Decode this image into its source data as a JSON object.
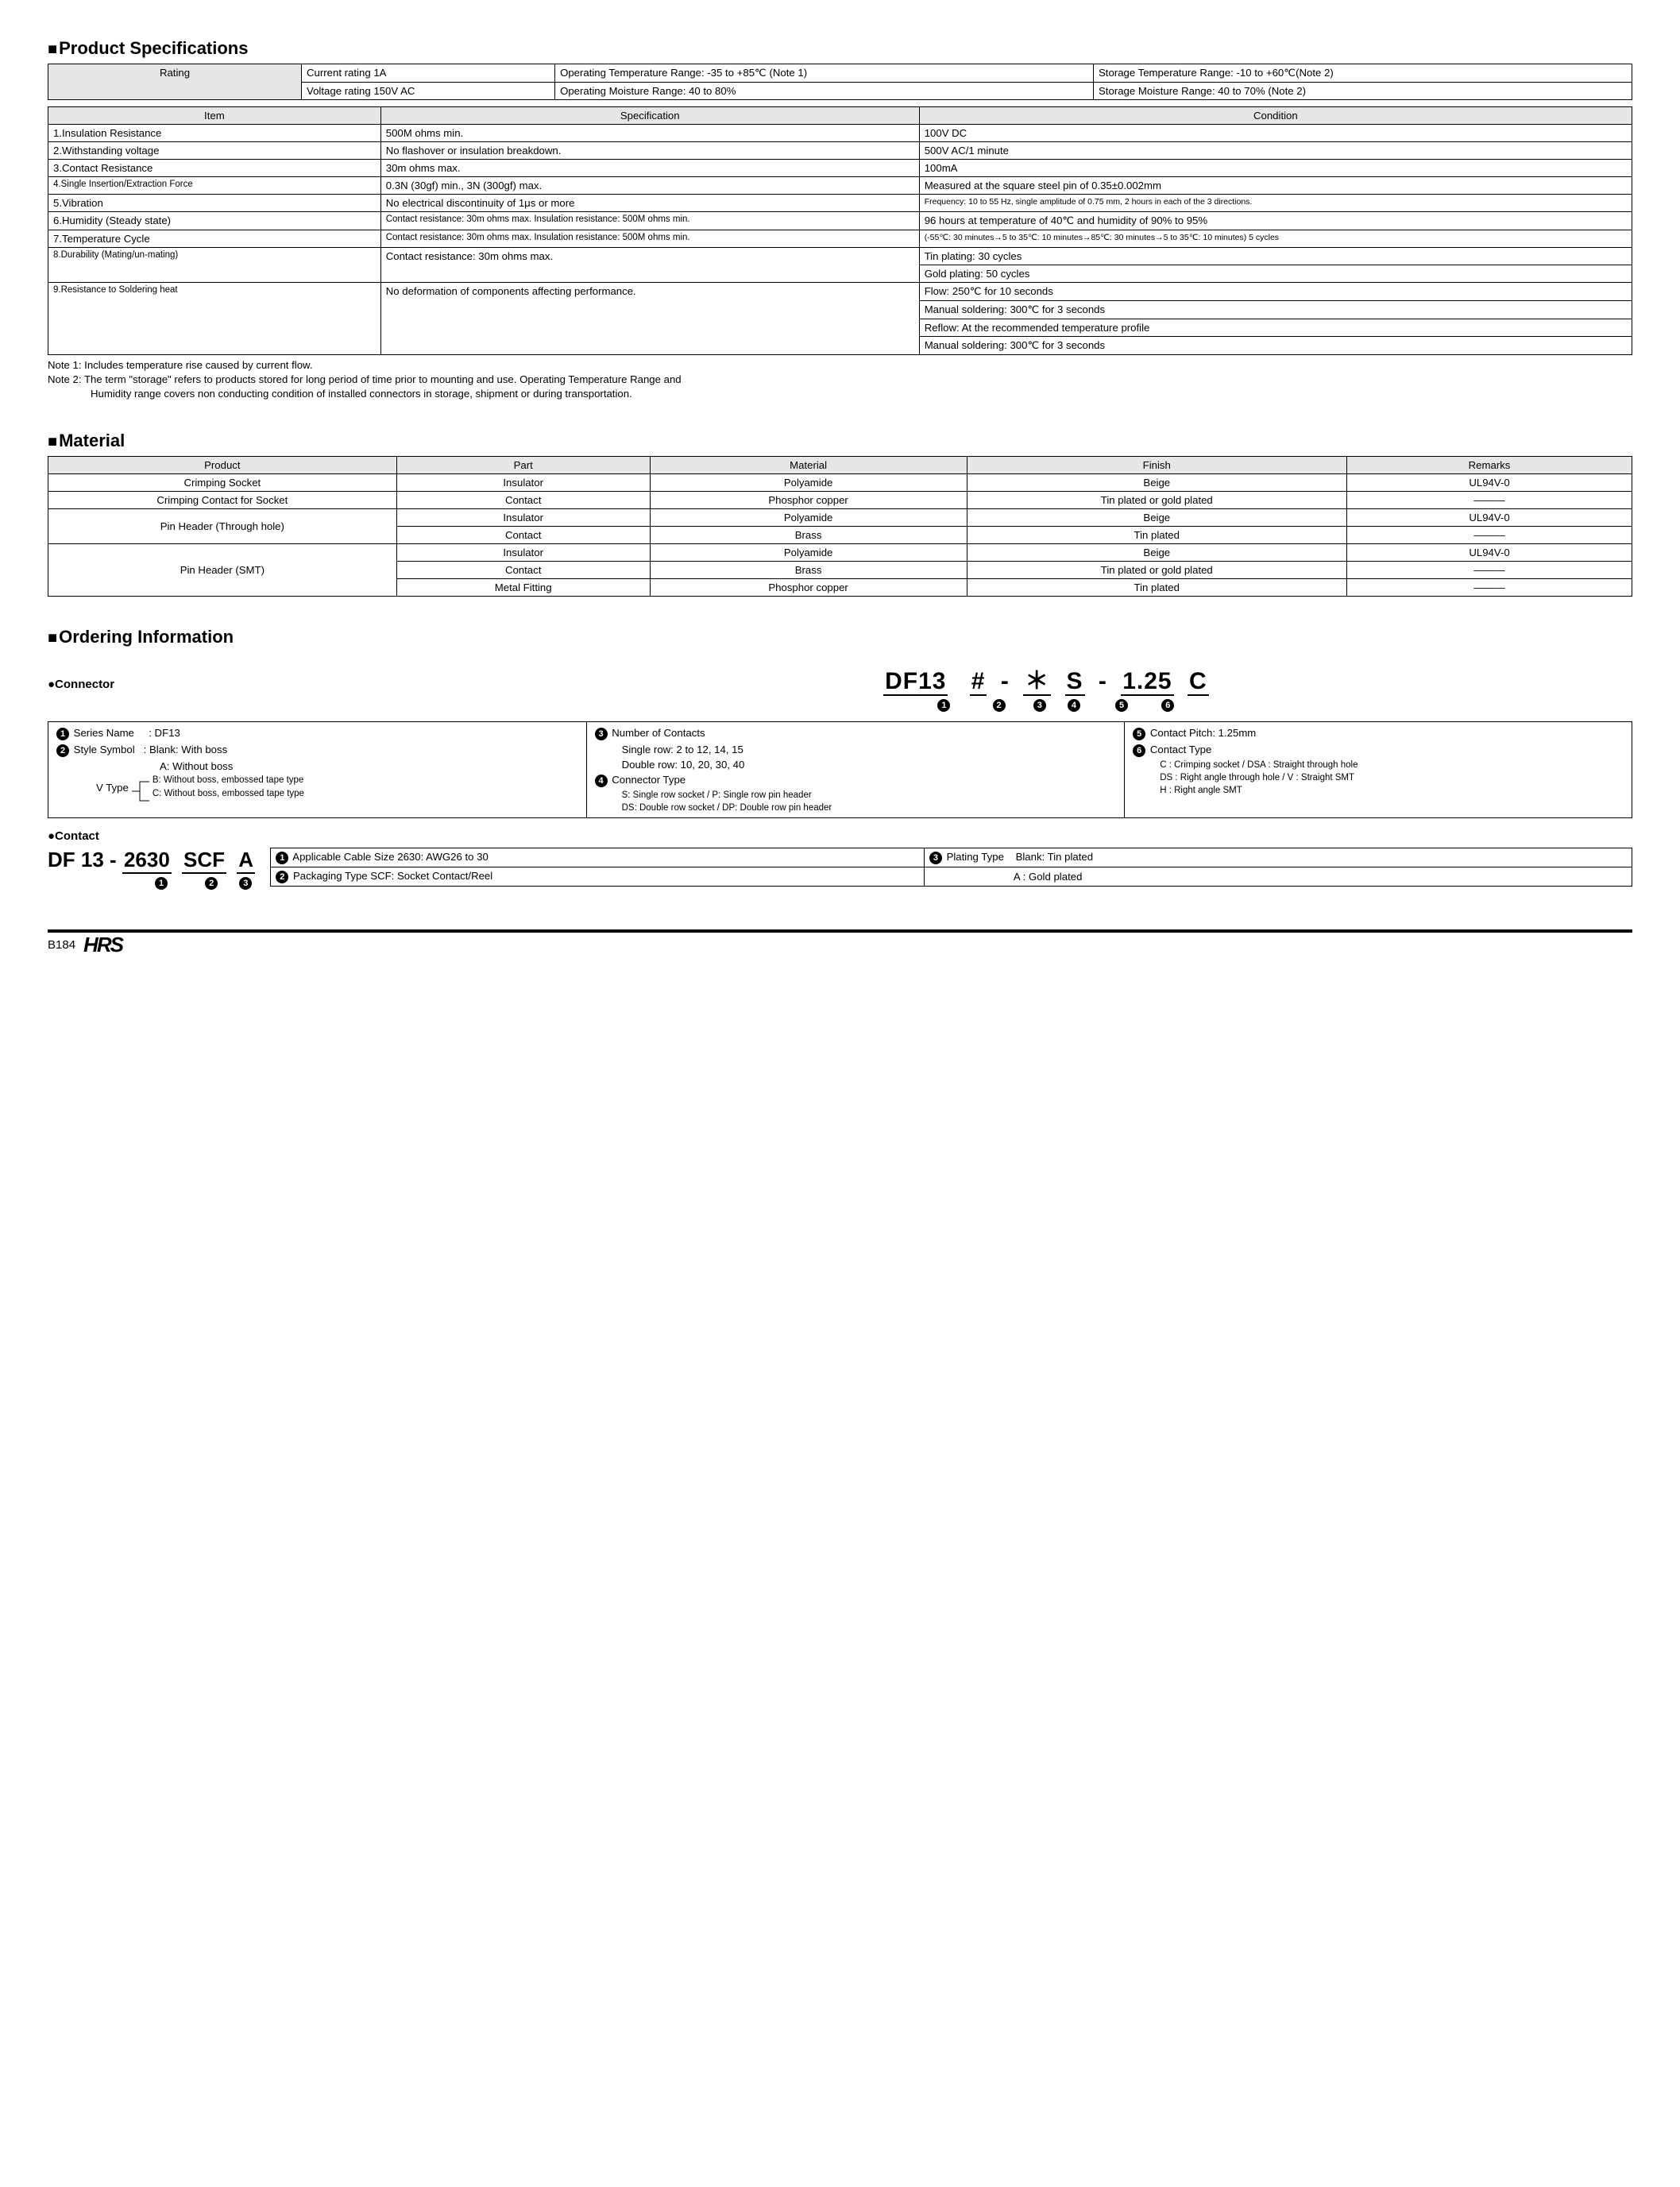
{
  "colors": {
    "bg": "#ffffff",
    "text": "#000000",
    "header_bg": "#e6e6e6",
    "border": "#000000"
  },
  "typography": {
    "body_pt": 10,
    "title_pt": 16
  },
  "specs_title": "Product Specifications",
  "rating": {
    "label": "Rating",
    "current": "Current rating  1A",
    "voltage": "Voltage rating  150V AC",
    "op_temp": "Operating Temperature Range: -35 to +85℃ (Note 1)",
    "op_moist": "Operating Moisture Range: 40 to 80%",
    "store_temp": "Storage Temperature Range: -10 to +60℃(Note 2)",
    "store_moist": "Storage Moisture Range: 40 to 70%        (Note 2)"
  },
  "spec_headers": {
    "item": "Item",
    "spec": "Specification",
    "cond": "Condition"
  },
  "spec_rows": [
    {
      "item": "1.Insulation Resistance",
      "spec": "500M ohms min.",
      "cond": [
        "100V DC"
      ]
    },
    {
      "item": "2.Withstanding voltage",
      "spec": "No flashover or insulation breakdown.",
      "cond": [
        "500V AC/1 minute"
      ]
    },
    {
      "item": "3.Contact Resistance",
      "spec": "30m ohms max.",
      "cond": [
        "100mA"
      ]
    },
    {
      "item": "4.Single Insertion/Extraction Force",
      "item_small": true,
      "spec": "0.3N (30gf) min., 3N (300gf) max.",
      "cond": [
        "Measured at the square steel pin of 0.35±0.002mm"
      ]
    },
    {
      "item": "5.Vibration",
      "spec": "No electrical discontinuity of 1μs or more",
      "cond": [
        "Frequency: 10 to 55 Hz, single amplitude of 0.75 mm, 2 hours in each of the 3 directions."
      ],
      "cond_small": true
    },
    {
      "item": "6.Humidity (Steady state)",
      "spec": "Contact resistance: 30m ohms max. Insulation resistance: 500M ohms min.",
      "spec_small": true,
      "cond": [
        "96 hours at temperature of 40℃ and humidity of 90% to 95%"
      ]
    },
    {
      "item": "7.Temperature Cycle",
      "spec": "Contact resistance: 30m ohms max. Insulation resistance: 500M ohms min.",
      "spec_small": true,
      "cond": [
        "(-55℃: 30 minutes→5 to 35℃: 10 minutes→85℃: 30 minutes→5 to 35℃: 10 minutes) 5 cycles"
      ],
      "cond_small": true
    },
    {
      "item": "8.Durability (Mating/un-mating)",
      "item_small": true,
      "spec": "Contact resistance: 30m ohms max.",
      "cond": [
        "Tin plating: 30 cycles",
        "Gold plating: 50 cycles"
      ]
    },
    {
      "item": "9.Resistance to Soldering heat",
      "item_small": true,
      "spec": "No deformation of components affecting performance.",
      "cond": [
        "Flow: 250℃ for 10 seconds",
        "Manual soldering: 300℃ for 3 seconds",
        "Reflow: At the recommended temperature profile",
        "Manual soldering: 300℃ for 3 seconds"
      ]
    }
  ],
  "note1": "Note 1: Includes temperature rise caused by current flow.",
  "note2a": "Note 2: The term \"storage\" refers to products stored for long period of time prior to mounting and use. Operating Temperature Range and",
  "note2b": "Humidity range covers non conducting condition of installed connectors in storage, shipment or during transportation.",
  "material_title": "Material",
  "material_headers": {
    "product": "Product",
    "part": "Part",
    "material": "Material",
    "finish": "Finish",
    "remarks": "Remarks"
  },
  "material_rows": [
    {
      "product": "Crimping Socket",
      "rowspan": 1,
      "part": "Insulator",
      "material": "Polyamide",
      "finish": "Beige",
      "remarks": "UL94V-0"
    },
    {
      "product": "Crimping Contact for Socket",
      "rowspan": 1,
      "part": "Contact",
      "material": "Phosphor copper",
      "finish": "Tin plated or gold plated",
      "remarks": "———"
    },
    {
      "product": "Pin Header (Through hole)",
      "rowspan": 2,
      "part": "Insulator",
      "material": "Polyamide",
      "finish": "Beige",
      "remarks": "UL94V-0"
    },
    {
      "part": "Contact",
      "material": "Brass",
      "finish": "Tin plated",
      "remarks": "———"
    },
    {
      "product": "Pin Header (SMT)",
      "rowspan": 3,
      "part": "Insulator",
      "material": "Polyamide",
      "finish": "Beige",
      "remarks": "UL94V-0"
    },
    {
      "part": "Contact",
      "material": "Brass",
      "finish": "Tin plated or gold plated",
      "remarks": "———"
    },
    {
      "part": "Metal Fitting",
      "material": "Phosphor copper",
      "finish": "Tin plated",
      "remarks": "———"
    }
  ],
  "ordering_title": "Ordering Information",
  "connector_head": "●Connector",
  "connector_code": {
    "s1": "DF13",
    "s2": "#",
    "s3": "＊",
    "s4": "S",
    "s5": "1.25",
    "s6": "C"
  },
  "connector_legend": {
    "c1": {
      "n1_label": "Series Name",
      "n1_val": ": DF13",
      "n2_label": "Style Symbol",
      "n2_val": ": Blank: With boss",
      "a": "A: Without boss",
      "vtype": "V Type",
      "b": "B: Without boss, embossed tape type",
      "c": "C: Without boss, embossed tape type"
    },
    "c2": {
      "n3": "Number of Contacts",
      "n3a": "Single row: 2 to 12, 14, 15",
      "n3b": "Double row: 10, 20, 30, 40",
      "n4": "Connector Type",
      "n4a": "S: Single row socket / P: Single row pin header",
      "n4b": "DS: Double row socket / DP: Double row pin header"
    },
    "c3": {
      "n5": "Contact Pitch: 1.25mm",
      "n6": "Contact Type",
      "n6a": "C : Crimping socket / DSA : Straight through hole",
      "n6b": "DS : Right angle through hole / V : Straight SMT",
      "n6c": "H : Right angle SMT"
    }
  },
  "contact_head": "●Contact",
  "contact_code": {
    "s0": "DF 13",
    "s1": "2630",
    "s2": "SCF",
    "s3": "A"
  },
  "contact_legend": {
    "r1a": "Applicable Cable Size  2630: AWG26 to 30",
    "r1b_label": "Plating Type",
    "r1b_val": "Blank: Tin plated",
    "r2a": "Packaging Type  SCF: Socket Contact/Reel",
    "r2b": "A   : Gold plated"
  },
  "footer": {
    "page": "B184",
    "logo": "HRS"
  }
}
